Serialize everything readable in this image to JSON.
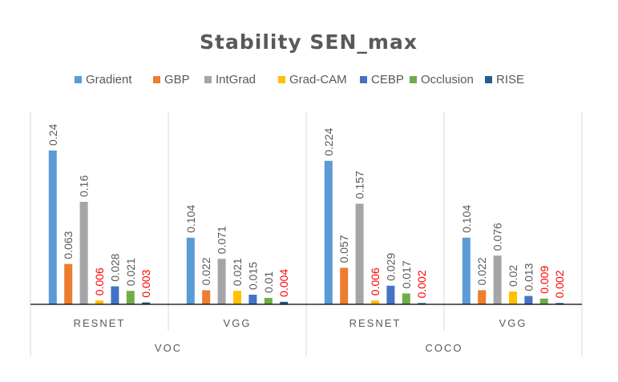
{
  "chart_data": {
    "type": "bar",
    "title": "Stability SEN_max",
    "xlabel": "",
    "ylabel": "",
    "ylim": [
      0,
      0.24
    ],
    "grid": false,
    "legend_position": "top",
    "groups": [
      {
        "outer": "VOC",
        "inner": "RESNET"
      },
      {
        "outer": "VOC",
        "inner": "VGG"
      },
      {
        "outer": "COCO",
        "inner": "RESNET"
      },
      {
        "outer": "COCO",
        "inner": "VGG"
      }
    ],
    "outer_categories": [
      "VOC",
      "COCO"
    ],
    "series": [
      {
        "name": "Gradient",
        "color": "#5B9BD5",
        "values": [
          0.24,
          0.104,
          0.224,
          0.104
        ],
        "labels": [
          "0.24",
          "0.104",
          "0.224",
          "0.104"
        ]
      },
      {
        "name": "GBP",
        "color": "#ED7D31",
        "values": [
          0.063,
          0.022,
          0.057,
          0.022
        ],
        "labels": [
          "0.063",
          "0.022",
          "0.057",
          "0.022"
        ]
      },
      {
        "name": "IntGrad",
        "color": "#A5A5A5",
        "values": [
          0.16,
          0.071,
          0.157,
          0.076
        ],
        "labels": [
          "0.16",
          "0.071",
          "0.157",
          "0.076"
        ]
      },
      {
        "name": "Grad-CAM",
        "color": "#FFC000",
        "values": [
          0.006,
          0.021,
          0.006,
          0.02
        ],
        "labels": [
          "0.006",
          "0.021",
          "0.006",
          "0.02"
        ],
        "label_colors": [
          "#FF0000",
          "#595959",
          "#FF0000",
          "#595959"
        ]
      },
      {
        "name": "CEBP",
        "color": "#4472C4",
        "values": [
          0.028,
          0.015,
          0.029,
          0.013
        ],
        "labels": [
          "0.028",
          "0.015",
          "0.029",
          "0.013"
        ]
      },
      {
        "name": "Occlusion",
        "color": "#70AD47",
        "values": [
          0.021,
          0.01,
          0.017,
          0.009
        ],
        "labels": [
          "0.021",
          "0.01",
          "0.017",
          "0.009"
        ],
        "label_colors": [
          "#595959",
          "#595959",
          "#595959",
          "#FF0000"
        ]
      },
      {
        "name": "RISE",
        "color": "#255E91",
        "values": [
          0.003,
          0.004,
          0.002,
          0.002
        ],
        "labels": [
          "0.003",
          "0.004",
          "0.002",
          "0.002"
        ],
        "label_colors": [
          "#FF0000",
          "#FF0000",
          "#FF0000",
          "#FF0000"
        ]
      }
    ],
    "colors": {
      "text": "#595959",
      "highlight": "#FF0000",
      "axis": "#000000",
      "divider": "#D9D9D9"
    }
  }
}
